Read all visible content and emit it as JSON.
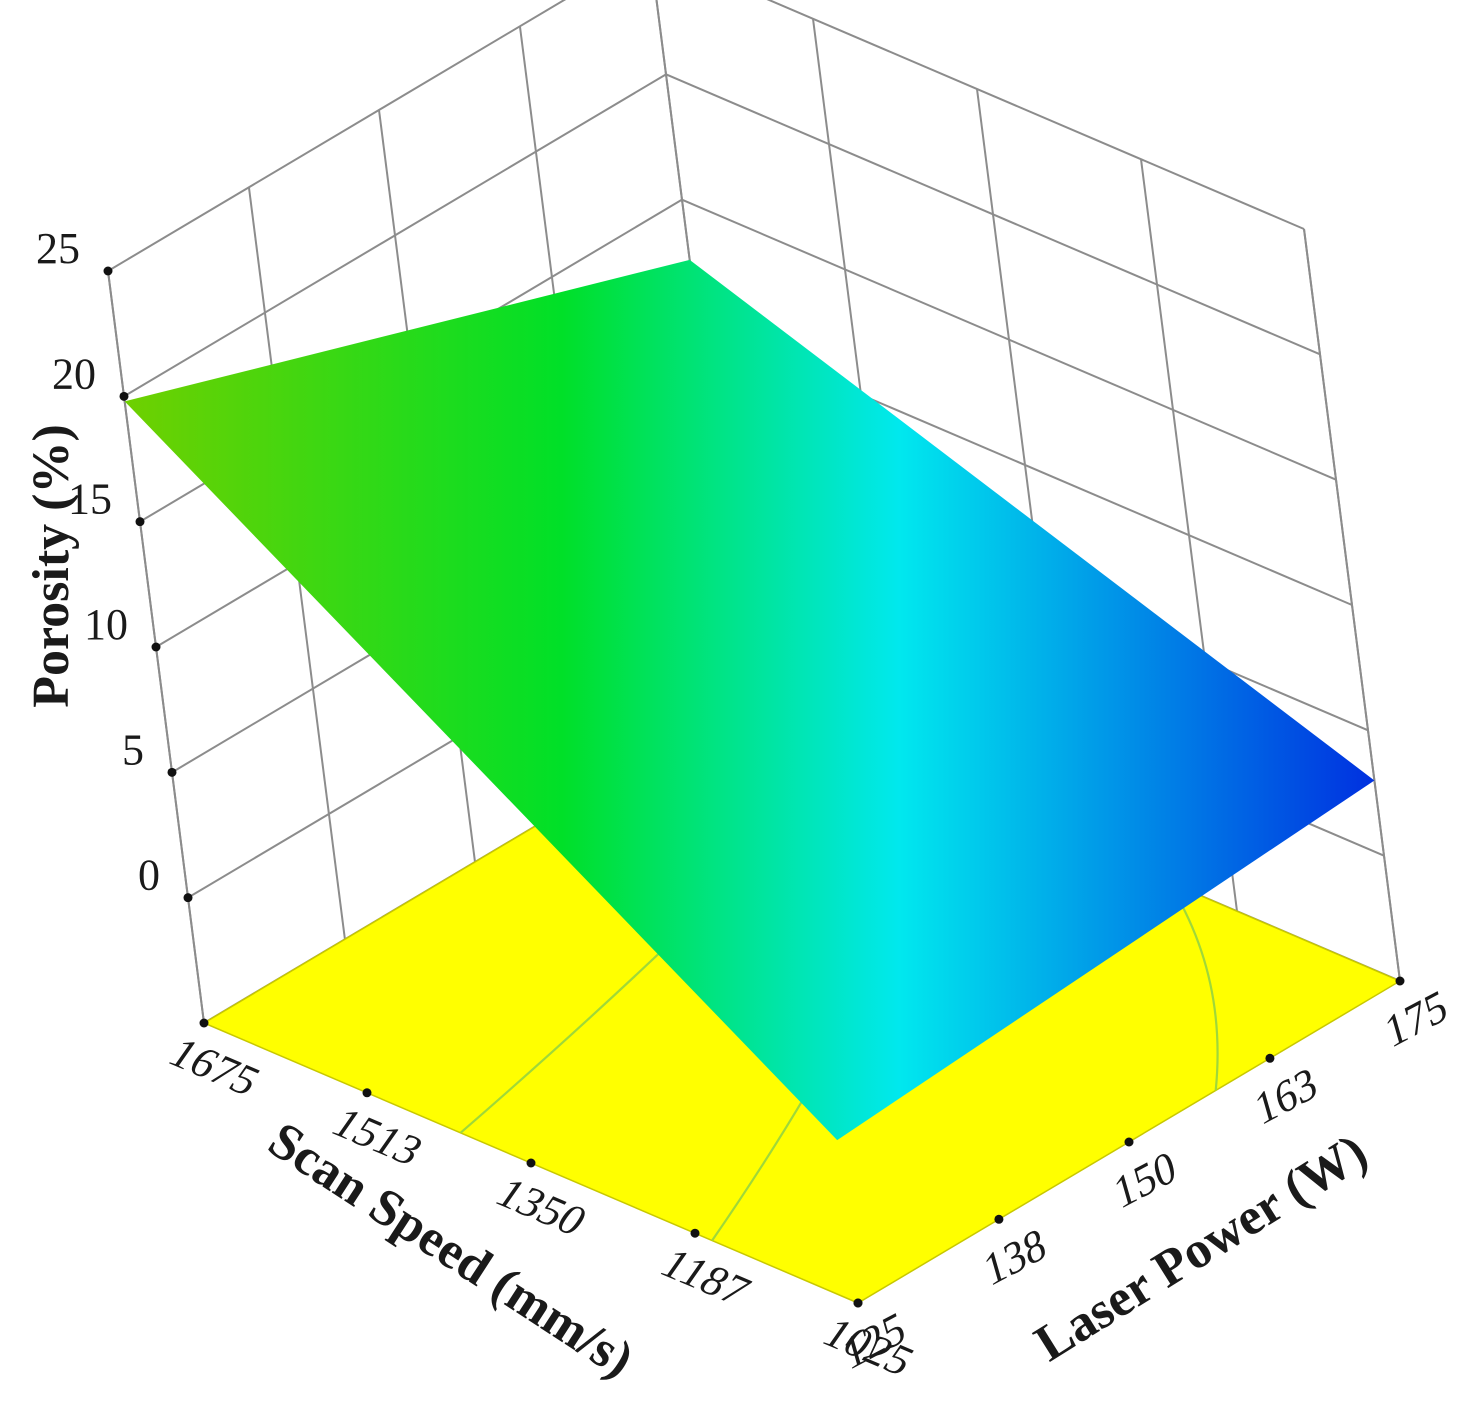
{
  "chart_data": {
    "type": "surface3d",
    "title": "",
    "xlabel": "Scan Speed (mm/s)",
    "ylabel": "Laser Power (W)",
    "zlabel": "Porosity (%)",
    "x_ticks": [
      "1675",
      "1513",
      "1350",
      "1187",
      "1025"
    ],
    "y_ticks": [
      "125",
      "138",
      "150",
      "163",
      "175"
    ],
    "z_ticks": [
      "0",
      "5",
      "10",
      "15",
      "20",
      "25"
    ],
    "x_range": [
      1025,
      1675
    ],
    "y_range": [
      125,
      175
    ],
    "z_range": [
      0,
      25
    ],
    "surface_corners": [
      {
        "scan_speed": 1675,
        "laser_power": 125,
        "porosity": 19.8
      },
      {
        "scan_speed": 1025,
        "laser_power": 125,
        "porosity": 1.5
      },
      {
        "scan_speed": 1025,
        "laser_power": 175,
        "porosity": 3.0
      },
      {
        "scan_speed": 1675,
        "laser_power": 175,
        "porosity": 12.6
      }
    ],
    "surface_colormap": [
      "#0030e0",
      "#00e8f0",
      "#00e030",
      "#80d000"
    ],
    "contour_plane_color": "#ffff00",
    "grid": true
  }
}
